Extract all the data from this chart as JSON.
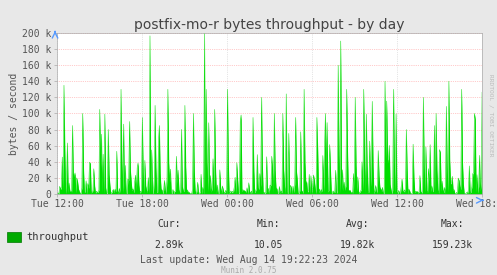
{
  "title": "postfix-mo-r bytes throughput - by day",
  "ylabel": "bytes / second",
  "xlabel_ticks": [
    "Tue 12:00",
    "Tue 18:00",
    "Wed 00:00",
    "Wed 06:00",
    "Wed 12:00",
    "Wed 18:00"
  ],
  "ytick_labels": [
    "0",
    "20 k",
    "40 k",
    "60 k",
    "80 k",
    "100 k",
    "120 k",
    "140 k",
    "160 k",
    "180 k",
    "200 k"
  ],
  "ytick_values": [
    0,
    20000,
    40000,
    60000,
    80000,
    100000,
    120000,
    140000,
    160000,
    180000,
    200000
  ],
  "ymax": 200000,
  "line_color": "#00dd00",
  "fill_color": "#00dd00",
  "bg_color": "#e8e8e8",
  "plot_bg_color": "#ffffff",
  "grid_color_h": "#ff9999",
  "grid_color_v": "#cccccc",
  "title_color": "#444444",
  "legend_label": "throughput",
  "legend_color": "#00aa00",
  "cur_val": "2.89k",
  "min_val": "10.05",
  "avg_val": "19.82k",
  "max_val": "159.23k",
  "last_update": "Wed Aug 14 19:22:23 2024",
  "munin_version": "Munin 2.0.75",
  "rrdtool_label": "RRDTOOL / TOBI OETIKER",
  "title_fontsize": 10,
  "axis_fontsize": 7,
  "legend_fontsize": 7.5,
  "stats_fontsize": 7,
  "n_points": 500
}
